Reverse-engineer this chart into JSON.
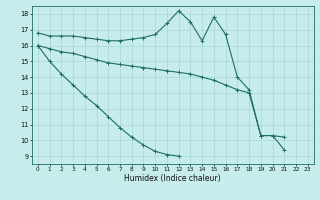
{
  "xlabel": "Humidex (Indice chaleur)",
  "xlim": [
    -0.5,
    23.5
  ],
  "ylim": [
    8.5,
    18.5
  ],
  "yticks": [
    9,
    10,
    11,
    12,
    13,
    14,
    15,
    16,
    17,
    18
  ],
  "xticks": [
    0,
    1,
    2,
    3,
    4,
    5,
    6,
    7,
    8,
    9,
    10,
    11,
    12,
    13,
    14,
    15,
    16,
    17,
    18,
    19,
    20,
    21,
    22,
    23
  ],
  "bg_color": "#c6eceb",
  "grid_color": "#a8d8d4",
  "line_color": "#1e6e68",
  "line1_y": [
    16.8,
    16.6,
    16.6,
    16.6,
    16.5,
    16.4,
    16.3,
    16.3,
    16.4,
    16.5,
    16.7,
    17.4,
    18.2,
    17.5,
    16.3,
    17.8,
    16.7,
    14.0,
    13.2,
    10.3,
    10.3,
    9.4,
    null,
    null
  ],
  "line2_y": [
    16.0,
    15.8,
    15.6,
    15.5,
    15.3,
    15.1,
    14.9,
    14.8,
    14.7,
    14.6,
    14.5,
    14.4,
    14.3,
    14.2,
    14.0,
    13.8,
    13.5,
    13.2,
    13.0,
    10.3,
    10.3,
    10.2,
    null,
    null
  ],
  "line3_y": [
    16.0,
    15.0,
    14.2,
    13.5,
    12.8,
    12.2,
    11.5,
    10.8,
    10.2,
    9.7,
    9.3,
    9.1,
    9.0,
    null,
    null,
    null,
    null,
    null,
    null,
    null,
    null,
    null,
    null,
    null
  ]
}
